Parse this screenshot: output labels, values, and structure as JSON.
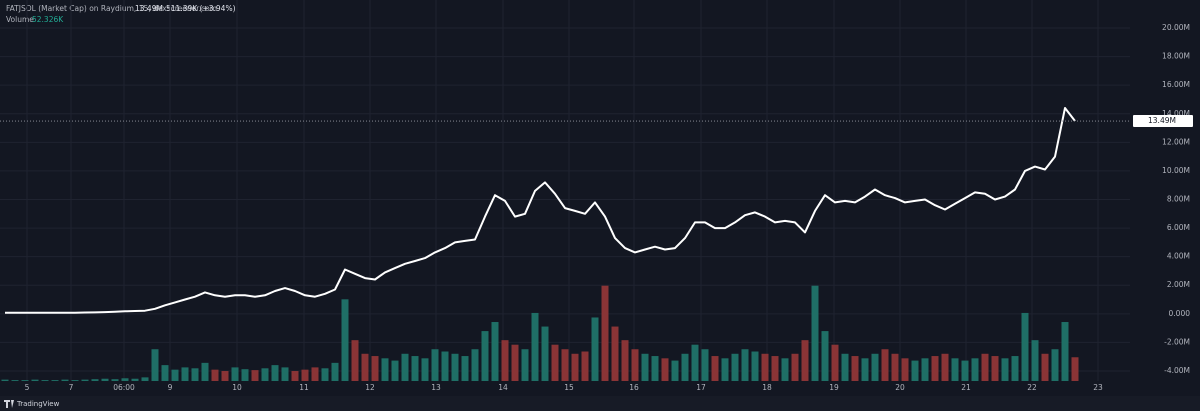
{
  "chart_data": {
    "type": "line",
    "header": {
      "symbol": "FATJSOL (Market Cap) on Raydium, 15, dexscreener.com",
      "last": "13.49M",
      "change": "511.39K (+3.94%)",
      "volume_label": "Volume",
      "volume_value": "52.326K"
    },
    "footer": "TradingView",
    "x": [
      0,
      1,
      2,
      3,
      4,
      5,
      6,
      7,
      8,
      9,
      10,
      11,
      12,
      13,
      14,
      15,
      16,
      17,
      18,
      19,
      20,
      21,
      22,
      23,
      24,
      25,
      26,
      27,
      28,
      29,
      30,
      31,
      32,
      33,
      34,
      35,
      36,
      37,
      38,
      39,
      40,
      41,
      42,
      43,
      44,
      45,
      46,
      47,
      48,
      49,
      50,
      51,
      52,
      53,
      54,
      55,
      56,
      57,
      58,
      59,
      60,
      61,
      62,
      63,
      64,
      65,
      66,
      67,
      68,
      69,
      70,
      71,
      72,
      73,
      74,
      75,
      76,
      77,
      78,
      79,
      80,
      81,
      82,
      83,
      84,
      85,
      86,
      87,
      88,
      89,
      90,
      91,
      92,
      93,
      94,
      95,
      96,
      97,
      98,
      99,
      100,
      101,
      102,
      103,
      104,
      105,
      106,
      107
    ],
    "values": [
      0.07,
      0.07,
      0.07,
      0.07,
      0.08,
      0.08,
      0.08,
      0.08,
      0.09,
      0.1,
      0.12,
      0.15,
      0.18,
      0.2,
      0.22,
      0.35,
      0.6,
      0.8,
      1.0,
      1.2,
      1.5,
      1.3,
      1.2,
      1.3,
      1.3,
      1.2,
      1.3,
      1.6,
      1.8,
      1.6,
      1.3,
      1.2,
      1.4,
      1.7,
      3.1,
      2.8,
      2.5,
      2.4,
      2.9,
      3.2,
      3.5,
      3.7,
      3.9,
      4.3,
      4.6,
      5.0,
      5.1,
      5.2,
      6.8,
      8.3,
      7.9,
      6.8,
      7.0,
      8.6,
      9.2,
      8.4,
      7.4,
      7.2,
      7.0,
      7.8,
      6.8,
      5.3,
      4.6,
      4.3,
      4.5,
      4.7,
      4.5,
      4.6,
      5.3,
      6.4,
      6.4,
      6.0,
      6.0,
      6.4,
      6.9,
      7.1,
      6.8,
      6.4,
      6.5,
      6.4,
      5.7,
      7.2,
      8.3,
      7.8,
      7.9,
      7.8,
      8.2,
      8.7,
      8.3,
      8.1,
      7.8,
      7.9,
      8.0,
      7.6,
      7.3,
      7.7,
      8.1,
      8.5,
      8.4,
      8.0,
      8.2,
      8.7,
      10.0,
      10.3,
      10.1,
      11.0,
      14.4,
      13.49
    ],
    "color": "#ffffff",
    "volume": {
      "axis": "y2",
      "up_color": "#1f6f66",
      "down_color": "#8a3436",
      "values": [
        3,
        2,
        2,
        3,
        2,
        2,
        3,
        2,
        3,
        4,
        5,
        4,
        6,
        5,
        8,
        70,
        35,
        25,
        30,
        28,
        40,
        25,
        22,
        30,
        26,
        24,
        28,
        35,
        30,
        22,
        25,
        30,
        28,
        40,
        180,
        90,
        60,
        55,
        50,
        45,
        60,
        55,
        50,
        70,
        65,
        60,
        55,
        70,
        110,
        130,
        90,
        80,
        70,
        150,
        120,
        80,
        70,
        60,
        65,
        140,
        210,
        120,
        90,
        70,
        60,
        55,
        50,
        45,
        60,
        80,
        70,
        55,
        50,
        60,
        70,
        65,
        60,
        55,
        50,
        60,
        90,
        210,
        110,
        80,
        60,
        55,
        50,
        60,
        70,
        60,
        50,
        45,
        50,
        55,
        60,
        50,
        45,
        50,
        60,
        55,
        50,
        55,
        150,
        90,
        60,
        70,
        130,
        52.326
      ]
    },
    "price_line": {
      "value": 13.49,
      "label": "13.49M"
    },
    "xlim": [
      -0.5,
      112.5
    ],
    "xticks": [
      {
        "value": 2.2,
        "label": "5"
      },
      {
        "value": 6.6,
        "label": "7"
      },
      {
        "value": 11.9,
        "label": "06:00"
      },
      {
        "value": 16.5,
        "label": "9"
      },
      {
        "value": 23.2,
        "label": "10"
      },
      {
        "value": 29.9,
        "label": "11"
      },
      {
        "value": 36.5,
        "label": "12"
      },
      {
        "value": 43.1,
        "label": "13"
      },
      {
        "value": 49.8,
        "label": "14"
      },
      {
        "value": 56.4,
        "label": "15"
      },
      {
        "value": 62.9,
        "label": "16"
      },
      {
        "value": 69.6,
        "label": "17"
      },
      {
        "value": 76.2,
        "label": "18"
      },
      {
        "value": 82.9,
        "label": "19"
      },
      {
        "value": 89.5,
        "label": "20"
      },
      {
        "value": 96.1,
        "label": "21"
      },
      {
        "value": 102.7,
        "label": "22"
      },
      {
        "value": 109.3,
        "label": "23"
      }
    ],
    "ylim": [
      -4.7,
      20.7
    ],
    "yticks": [
      {
        "value": -4,
        "label": "-4.00M"
      },
      {
        "value": -2,
        "label": "-2.00M"
      },
      {
        "value": 0,
        "label": "0.000"
      },
      {
        "value": 2,
        "label": "2.00M"
      },
      {
        "value": 4,
        "label": "4.00M"
      },
      {
        "value": 6,
        "label": "6.00M"
      },
      {
        "value": 8,
        "label": "8.00M"
      },
      {
        "value": 10,
        "label": "10.00M"
      },
      {
        "value": 12,
        "label": "12.00M"
      },
      {
        "value": 14,
        "label": "14.00M"
      },
      {
        "value": 16,
        "label": "16.00M"
      },
      {
        "value": 18,
        "label": "18.00M"
      },
      {
        "value": 20,
        "label": "20.00M"
      }
    ],
    "y2lim": [
      0,
      800
    ],
    "grid": true
  }
}
